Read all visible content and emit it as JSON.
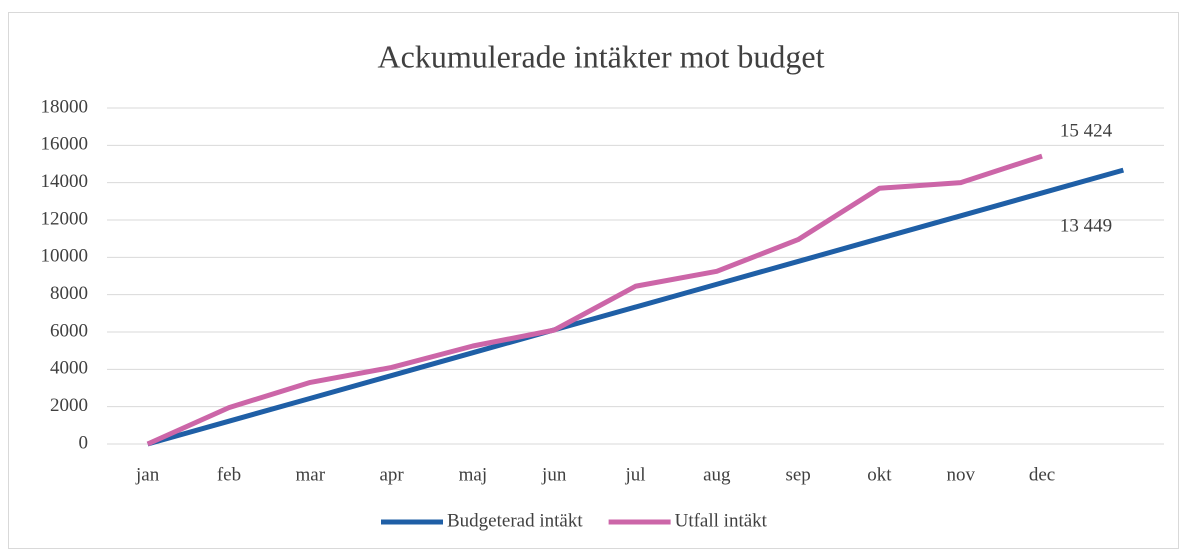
{
  "chart_data": {
    "type": "line",
    "title": "Ackumulerade intäkter mot budget",
    "categories": [
      "jan",
      "feb",
      "mar",
      "apr",
      "maj",
      "jun",
      "jul",
      "aug",
      "sep",
      "okt",
      "nov",
      "dec",
      null
    ],
    "series": [
      {
        "name": "Budgeterad intäkt",
        "color": "#1f5fa6",
        "values": [
          0,
          1223,
          2445,
          3668,
          4891,
          6113,
          7336,
          8559,
          9781,
          11004,
          12226,
          13449,
          14672
        ],
        "value_labels": [
          null,
          null,
          null,
          null,
          null,
          null,
          null,
          null,
          null,
          null,
          null,
          "13 449",
          null
        ]
      },
      {
        "name": "Utfall intäkt",
        "color": "#cc66a8",
        "values": [
          0,
          1950,
          3300,
          4100,
          5250,
          6100,
          8450,
          9250,
          10950,
          13700,
          14000,
          15424,
          null
        ],
        "value_labels": [
          null,
          null,
          null,
          null,
          null,
          null,
          null,
          null,
          null,
          null,
          null,
          "15 424",
          null
        ]
      }
    ],
    "ylim": [
      0,
      18000
    ],
    "yticks": [
      0,
      2000,
      4000,
      6000,
      8000,
      10000,
      12000,
      14000,
      16000,
      18000
    ],
    "grid": true,
    "legend": "bottom"
  }
}
